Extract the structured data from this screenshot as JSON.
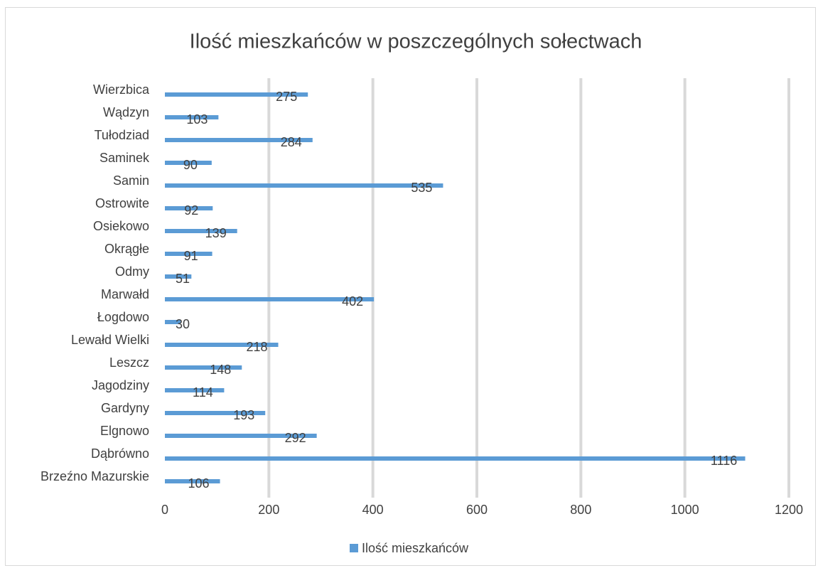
{
  "chart_data": {
    "type": "bar",
    "orientation": "horizontal",
    "title": "Ilość mieszkańców w poszczególnych sołectwach",
    "categories": [
      "Brzeźno Mazurskie",
      "Dąbrówno",
      "Elgnowo",
      "Gardyny",
      "Jagodziny",
      "Leszcz",
      "Lewałd Wielki",
      "Łogdowo",
      "Marwałd",
      "Odmy",
      "Okrągłe",
      "Osiekowo",
      "Ostrowite",
      "Samin",
      "Saminek",
      "Tułodziad",
      "Wądzyn",
      "Wierzbica"
    ],
    "series": [
      {
        "name": "Ilość mieszkańców",
        "color": "#5b9bd5",
        "values": [
          106,
          1116,
          292,
          193,
          114,
          148,
          218,
          30,
          402,
          51,
          91,
          139,
          92,
          535,
          90,
          284,
          103,
          275
        ]
      }
    ],
    "xlim": [
      0,
      1200
    ],
    "xticks": [
      0,
      200,
      400,
      600,
      800,
      1000,
      1200
    ],
    "grid": true,
    "legend": "bottom"
  }
}
